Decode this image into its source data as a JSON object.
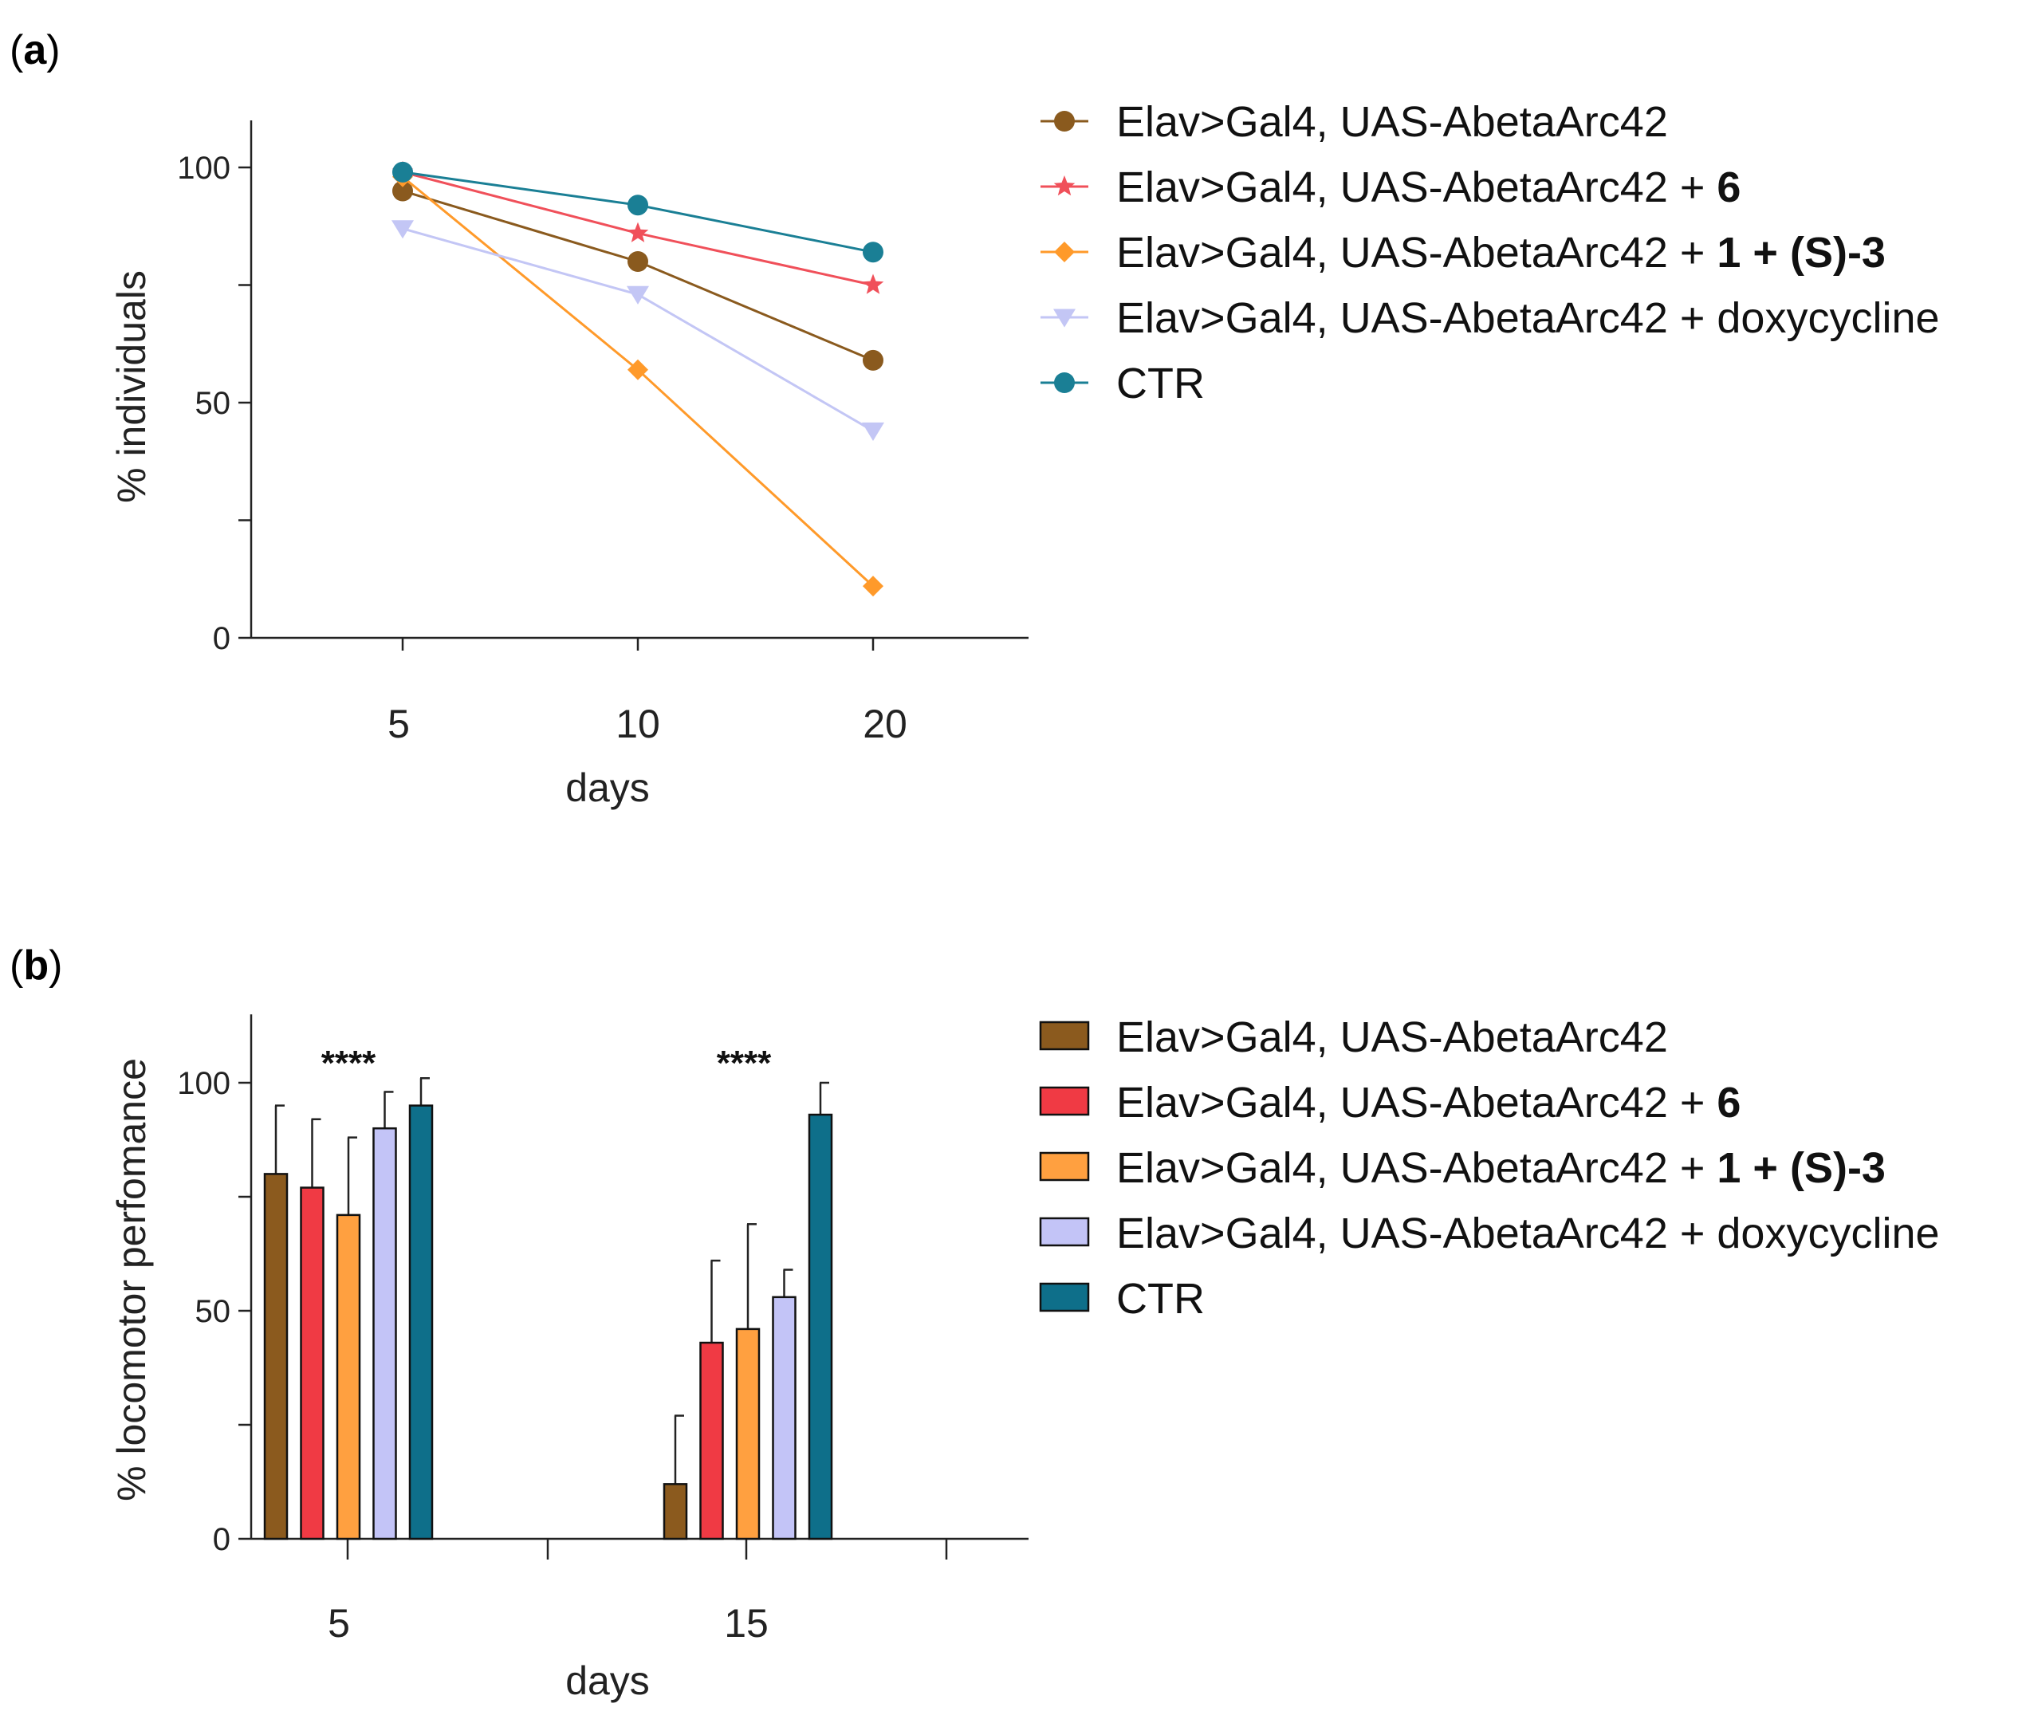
{
  "panels": {
    "a_label": "a",
    "b_label": "b"
  },
  "chart_data": [
    {
      "type": "line",
      "panel": "a",
      "xlabel": "days",
      "ylabel": "% individuals",
      "categories": [
        "5",
        "10",
        "20"
      ],
      "ylim": [
        0,
        110
      ],
      "yticks": [
        0,
        50,
        100
      ],
      "legend_position": "right",
      "series": [
        {
          "name": "Elav>Gal4, UAS-AbetaArc42",
          "name_suffix_bold": "",
          "values": [
            95,
            80,
            59
          ],
          "color": "#8a5a1e",
          "marker": "circle"
        },
        {
          "name": "Elav>Gal4, UAS-AbetaArc42 + ",
          "name_suffix_bold": "6",
          "values": [
            99,
            86,
            75
          ],
          "color": "#f0505a",
          "marker": "star"
        },
        {
          "name": "Elav>Gal4, UAS-AbetaArc42 + ",
          "name_suffix_bold": "1 + (S)-3",
          "values": [
            98,
            57,
            11
          ],
          "color": "#ff9a2a",
          "marker": "diamond"
        },
        {
          "name": "Elav>Gal4, UAS-AbetaArc42 + doxycycline",
          "name_suffix_bold": "",
          "values": [
            87,
            73,
            44
          ],
          "color": "#c3c6f5",
          "marker": "triangle-down"
        },
        {
          "name": "CTR",
          "name_suffix_bold": "",
          "values": [
            99,
            92,
            82
          ],
          "color": "#1a7f95",
          "marker": "circle"
        }
      ]
    },
    {
      "type": "bar",
      "panel": "b",
      "xlabel": "days",
      "ylabel": "% locomotor perfomance",
      "categories": [
        "5",
        "15"
      ],
      "ylim": [
        0,
        115
      ],
      "yticks": [
        0,
        50,
        100
      ],
      "legend_position": "right",
      "significance": [
        "****",
        "****"
      ],
      "series": [
        {
          "name": "Elav>Gal4, UAS-AbetaArc42",
          "name_suffix_bold": "",
          "values": [
            80,
            12
          ],
          "errors": [
            15,
            15
          ],
          "color": "#8b5a1e"
        },
        {
          "name": "Elav>Gal4, UAS-AbetaArc42 + ",
          "name_suffix_bold": "6",
          "values": [
            77,
            43
          ],
          "errors": [
            15,
            18
          ],
          "color": "#f03a44"
        },
        {
          "name": "Elav>Gal4, UAS-AbetaArc42 + ",
          "name_suffix_bold": "1 + (S)-3",
          "values": [
            71,
            46
          ],
          "errors": [
            17,
            23
          ],
          "color": "#ffa040"
        },
        {
          "name": "Elav>Gal4, UAS-AbetaArc42 + doxycycline",
          "name_suffix_bold": "",
          "values": [
            90,
            53
          ],
          "errors": [
            8,
            6
          ],
          "color": "#c3c4f7"
        },
        {
          "name": "CTR",
          "name_suffix_bold": "",
          "values": [
            95,
            93
          ],
          "errors": [
            6,
            7
          ],
          "color": "#0e6f8a"
        }
      ]
    }
  ]
}
